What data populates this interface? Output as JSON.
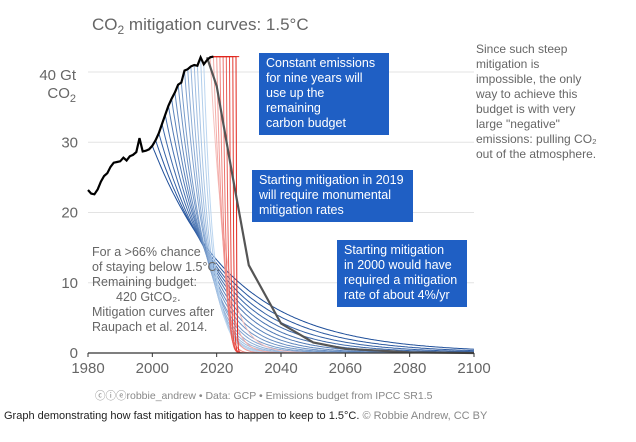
{
  "chart_data": {
    "type": "line",
    "title_main": "CO",
    "title_sub": "2",
    "title_rest": " mitigation curves: 1.5°C",
    "ylabel_top": "40 Gt",
    "ylabel_bottom_main": "CO",
    "ylabel_bottom_sub": "2",
    "x_ticks": [
      "1980",
      "2000",
      "2020",
      "2040",
      "2060",
      "2080",
      "2100"
    ],
    "y_ticks": [
      "0",
      "10",
      "20",
      "30"
    ],
    "xlim": [
      1980,
      2100
    ],
    "ylim": [
      0,
      42
    ],
    "grid": "horizontal",
    "historical": {
      "x": [
        1980,
        1981,
        1982,
        1983,
        1984,
        1985,
        1986,
        1987,
        1988,
        1989,
        1990,
        1991,
        1992,
        1993,
        1994,
        1995,
        1996,
        1997,
        1998,
        1999,
        2000,
        2001,
        2002,
        2003,
        2004,
        2005,
        2006,
        2007,
        2008,
        2009,
        2010,
        2011,
        2012,
        2013,
        2014,
        2015,
        2016,
        2017,
        2018,
        2019
      ],
      "y": [
        23.2,
        22.7,
        22.6,
        23.3,
        24.4,
        25.2,
        25.6,
        26.5,
        27.1,
        27.2,
        27.3,
        27.8,
        27.4,
        28.0,
        28.2,
        28.6,
        30.6,
        28.7,
        28.8,
        29.0,
        29.5,
        30.3,
        31.3,
        32.6,
        33.9,
        35.2,
        36.2,
        37.1,
        38.2,
        38.5,
        40.2,
        40.4,
        40.8,
        41.0,
        40.9,
        42.1,
        41.1,
        41.7,
        42.1,
        42.2
      ]
    },
    "budget_curve_x": [
      2017,
      2020,
      2025,
      2030,
      2040,
      2050,
      2060,
      2080,
      2100
    ],
    "budget_curve_y": [
      42.1,
      38.0,
      25.0,
      12.5,
      4.2,
      1.5,
      0.6,
      0.1,
      0.0
    ],
    "annotations": {
      "box1": [
        "Constant emissions",
        "for nine years will",
        "use up the remaining",
        "carbon budget"
      ],
      "box2": [
        "Starting mitigation in 2019",
        "will require monumental",
        "mitigation rates"
      ],
      "box3": [
        "Starting mitigation",
        "in 2000 would have",
        "required a mitigation",
        "rate of about 4%/yr"
      ],
      "right_note_lines": [
        "Since such steep",
        "mitigation is",
        "impossible, the only",
        "way to achieve this",
        "budget is with very",
        "large \"negative\"",
        "emissions: pulling CO₂",
        "out of the atmosphere."
      ],
      "left_note_lines": [
        "For a >66% chance",
        "of staying below 1.5°C.",
        "Remaining budget:",
        "420 GtCO₂.",
        "Mitigation curves after",
        "Raupach et al. 2014."
      ]
    },
    "colors": {
      "historical": "#000000",
      "budget": "#555555",
      "blue_dark": "#1f4f9a",
      "blue_light": "#bcd6f0",
      "red_dark": "#e0241b",
      "red_light": "#f6c0bd",
      "box": "#1f5fc4",
      "grid": "#e3e3e3"
    }
  },
  "footer": {
    "text": "ⓒⓘⓔrobbie_andrew • Data: GCP • Emissions budget from IPCC SR1.5"
  },
  "caption": {
    "text": "Graph demonstrating how fast mitigation has to happen to keep to 1.5°C.",
    "credit": "© Robbie Andrew, CC BY"
  }
}
